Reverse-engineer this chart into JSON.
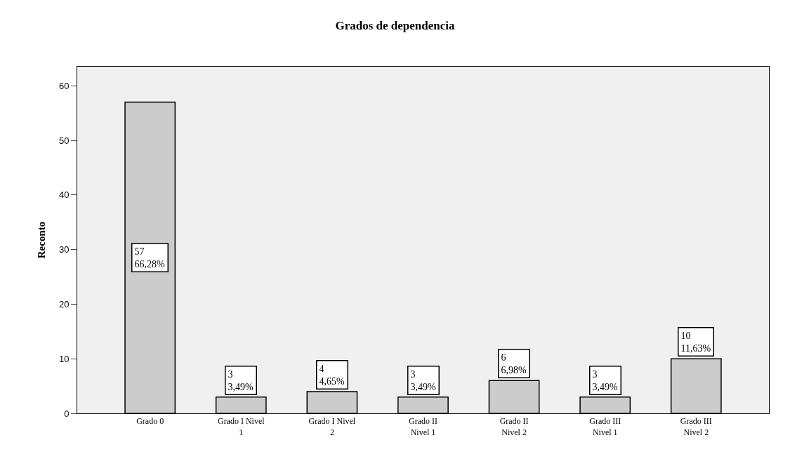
{
  "chart_data": {
    "type": "bar",
    "title": "Grados de dependencia",
    "ylabel": "Reconto",
    "categories": [
      "Grado 0",
      "Grado I Nivel 1",
      "Grado I Nivel 2",
      "Grado II Nivel 1",
      "Grado II Nivel 2",
      "Grado III Nivel 1",
      "Grado III Nivel 2"
    ],
    "values": [
      57,
      3,
      4,
      3,
      6,
      3,
      10
    ],
    "value_labels": [
      "57\n66,28%",
      "3\n3,49%",
      "4\n4,65%",
      "3\n3,49%",
      "6\n6,98%",
      "3\n3,49%",
      "10\n11,63%"
    ],
    "color": "#cccccc",
    "ylim": [
      0,
      63.5
    ],
    "yticks": [
      0,
      10,
      20,
      30,
      40,
      50,
      60
    ],
    "grid": false
  }
}
